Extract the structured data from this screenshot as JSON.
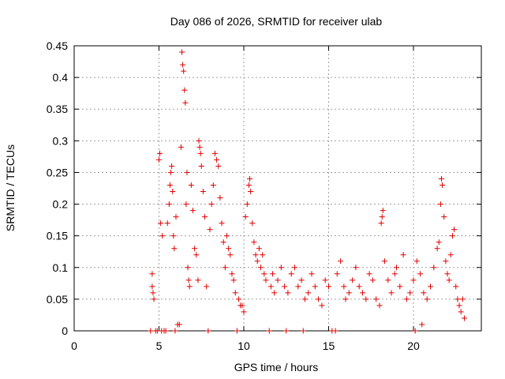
{
  "chart_data": {
    "type": "scatter",
    "title": "Day 086 of 2026, SRMTID for receiver ulab",
    "xlabel": "GPS time / hours",
    "ylabel": "SRMTID / TECUs",
    "xlim": [
      0,
      24
    ],
    "ylim": [
      0,
      0.45
    ],
    "xticks": [
      0,
      5,
      10,
      15,
      20
    ],
    "yticks": [
      0,
      0.05,
      0.1,
      0.15,
      0.2,
      0.25,
      0.3,
      0.35,
      0.4,
      0.45
    ],
    "xtick_labels": [
      "0",
      "5",
      "10",
      "15",
      "20"
    ],
    "ytick_labels": [
      "0",
      "0.05",
      "0.1",
      "0.15",
      "0.2",
      "0.25",
      "0.3",
      "0.35",
      "0.4",
      "0.45"
    ],
    "grid": true,
    "marker": "+",
    "color": "#e00000",
    "series": [
      {
        "name": "SRMTID",
        "points": [
          [
            4.5,
            0
          ],
          [
            4.6,
            0.09
          ],
          [
            4.6,
            0.07
          ],
          [
            4.65,
            0.06
          ],
          [
            4.7,
            0.05
          ],
          [
            4.8,
            0
          ],
          [
            4.9,
            0
          ],
          [
            5.0,
            0.27
          ],
          [
            5.05,
            0.28
          ],
          [
            5.1,
            0.17
          ],
          [
            5.15,
            0
          ],
          [
            5.2,
            0.15
          ],
          [
            5.3,
            0
          ],
          [
            5.4,
            0
          ],
          [
            5.5,
            0.17
          ],
          [
            5.6,
            0.2
          ],
          [
            5.65,
            0.23
          ],
          [
            5.7,
            0.25
          ],
          [
            5.75,
            0.26
          ],
          [
            5.8,
            0.22
          ],
          [
            5.85,
            0.15
          ],
          [
            5.9,
            0.13
          ],
          [
            5.95,
            0
          ],
          [
            6.0,
            0.18
          ],
          [
            6.1,
            0.01
          ],
          [
            6.2,
            0.01
          ],
          [
            6.3,
            0.29
          ],
          [
            6.35,
            0.44
          ],
          [
            6.4,
            0.42
          ],
          [
            6.45,
            0.41
          ],
          [
            6.5,
            0.38
          ],
          [
            6.55,
            0.36
          ],
          [
            6.6,
            0.2
          ],
          [
            6.65,
            0.25
          ],
          [
            6.7,
            0.1
          ],
          [
            6.75,
            0.08
          ],
          [
            6.8,
            0.07
          ],
          [
            6.9,
            0.23
          ],
          [
            7.0,
            0.19
          ],
          [
            7.1,
            0.13
          ],
          [
            7.2,
            0.12
          ],
          [
            7.3,
            0.08
          ],
          [
            7.35,
            0.3
          ],
          [
            7.4,
            0.29
          ],
          [
            7.45,
            0.28
          ],
          [
            7.5,
            0.26
          ],
          [
            7.6,
            0.22
          ],
          [
            7.7,
            0.18
          ],
          [
            7.8,
            0.07
          ],
          [
            7.9,
            0
          ],
          [
            8.0,
            0.16
          ],
          [
            8.1,
            0.2
          ],
          [
            8.2,
            0.23
          ],
          [
            8.3,
            0.28
          ],
          [
            8.4,
            0.27
          ],
          [
            8.5,
            0.26
          ],
          [
            8.6,
            0.21
          ],
          [
            8.7,
            0.17
          ],
          [
            8.8,
            0.14
          ],
          [
            8.9,
            0.1
          ],
          [
            9.0,
            0.15
          ],
          [
            9.1,
            0.13
          ],
          [
            9.2,
            0.12
          ],
          [
            9.3,
            0.09
          ],
          [
            9.4,
            0.08
          ],
          [
            9.5,
            0.06
          ],
          [
            9.6,
            0
          ],
          [
            9.7,
            0.05
          ],
          [
            9.8,
            0.04
          ],
          [
            9.9,
            0.04
          ],
          [
            10.0,
            0.03
          ],
          [
            10.1,
            0.18
          ],
          [
            10.2,
            0.2
          ],
          [
            10.3,
            0.23
          ],
          [
            10.35,
            0.24
          ],
          [
            10.4,
            0.22
          ],
          [
            10.5,
            0.17
          ],
          [
            10.6,
            0.14
          ],
          [
            10.7,
            0.12
          ],
          [
            10.8,
            0.11
          ],
          [
            10.9,
            0.13
          ],
          [
            11.0,
            0.1
          ],
          [
            11.1,
            0.12
          ],
          [
            11.2,
            0.09
          ],
          [
            11.3,
            0.08
          ],
          [
            11.5,
            0
          ],
          [
            11.6,
            0.07
          ],
          [
            11.7,
            0.09
          ],
          [
            11.8,
            0.06
          ],
          [
            12.0,
            0.08
          ],
          [
            12.2,
            0.1
          ],
          [
            12.4,
            0.07
          ],
          [
            12.5,
            0
          ],
          [
            12.6,
            0.06
          ],
          [
            12.8,
            0.09
          ],
          [
            13.0,
            0.1
          ],
          [
            13.2,
            0.07
          ],
          [
            13.4,
            0.08
          ],
          [
            13.5,
            0
          ],
          [
            13.6,
            0.05
          ],
          [
            13.8,
            0.06
          ],
          [
            14.0,
            0.09
          ],
          [
            14.2,
            0.07
          ],
          [
            14.4,
            0.05
          ],
          [
            14.6,
            0.04
          ],
          [
            14.8,
            0.08
          ],
          [
            15.0,
            0.07
          ],
          [
            15.2,
            0
          ],
          [
            15.4,
            0
          ],
          [
            15.5,
            0.09
          ],
          [
            15.7,
            0.11
          ],
          [
            15.9,
            0.07
          ],
          [
            16.0,
            0.05
          ],
          [
            16.2,
            0.06
          ],
          [
            16.4,
            0.08
          ],
          [
            16.6,
            0.1
          ],
          [
            16.8,
            0.07
          ],
          [
            17.0,
            0.06
          ],
          [
            17.2,
            0.05
          ],
          [
            17.4,
            0.09
          ],
          [
            17.6,
            0.08
          ],
          [
            17.8,
            0.05
          ],
          [
            18.0,
            0.04
          ],
          [
            18.1,
            0.17
          ],
          [
            18.15,
            0.18
          ],
          [
            18.2,
            0.19
          ],
          [
            18.3,
            0.11
          ],
          [
            18.5,
            0.08
          ],
          [
            18.7,
            0.06
          ],
          [
            18.9,
            0.09
          ],
          [
            19.0,
            0.1
          ],
          [
            19.2,
            0.07
          ],
          [
            19.4,
            0.12
          ],
          [
            19.6,
            0.05
          ],
          [
            19.8,
            0.06
          ],
          [
            20.0,
            0.08
          ],
          [
            20.1,
            0.0
          ],
          [
            20.2,
            0.11
          ],
          [
            20.4,
            0.09
          ],
          [
            20.5,
            0.01
          ],
          [
            20.6,
            0.06
          ],
          [
            20.8,
            0.05
          ],
          [
            21.0,
            0.07
          ],
          [
            21.2,
            0.1
          ],
          [
            21.4,
            0.13
          ],
          [
            21.5,
            0.14
          ],
          [
            21.6,
            0.2
          ],
          [
            21.65,
            0.24
          ],
          [
            21.7,
            0.23
          ],
          [
            21.8,
            0.18
          ],
          [
            21.9,
            0.11
          ],
          [
            22.0,
            0.09
          ],
          [
            22.1,
            0.08
          ],
          [
            22.2,
            0.12
          ],
          [
            22.3,
            0.15
          ],
          [
            22.4,
            0.16
          ],
          [
            22.5,
            0.07
          ],
          [
            22.6,
            0.05
          ],
          [
            22.7,
            0.04
          ],
          [
            22.8,
            0.03
          ],
          [
            22.9,
            0.05
          ],
          [
            23.0,
            0.02
          ]
        ]
      }
    ]
  }
}
